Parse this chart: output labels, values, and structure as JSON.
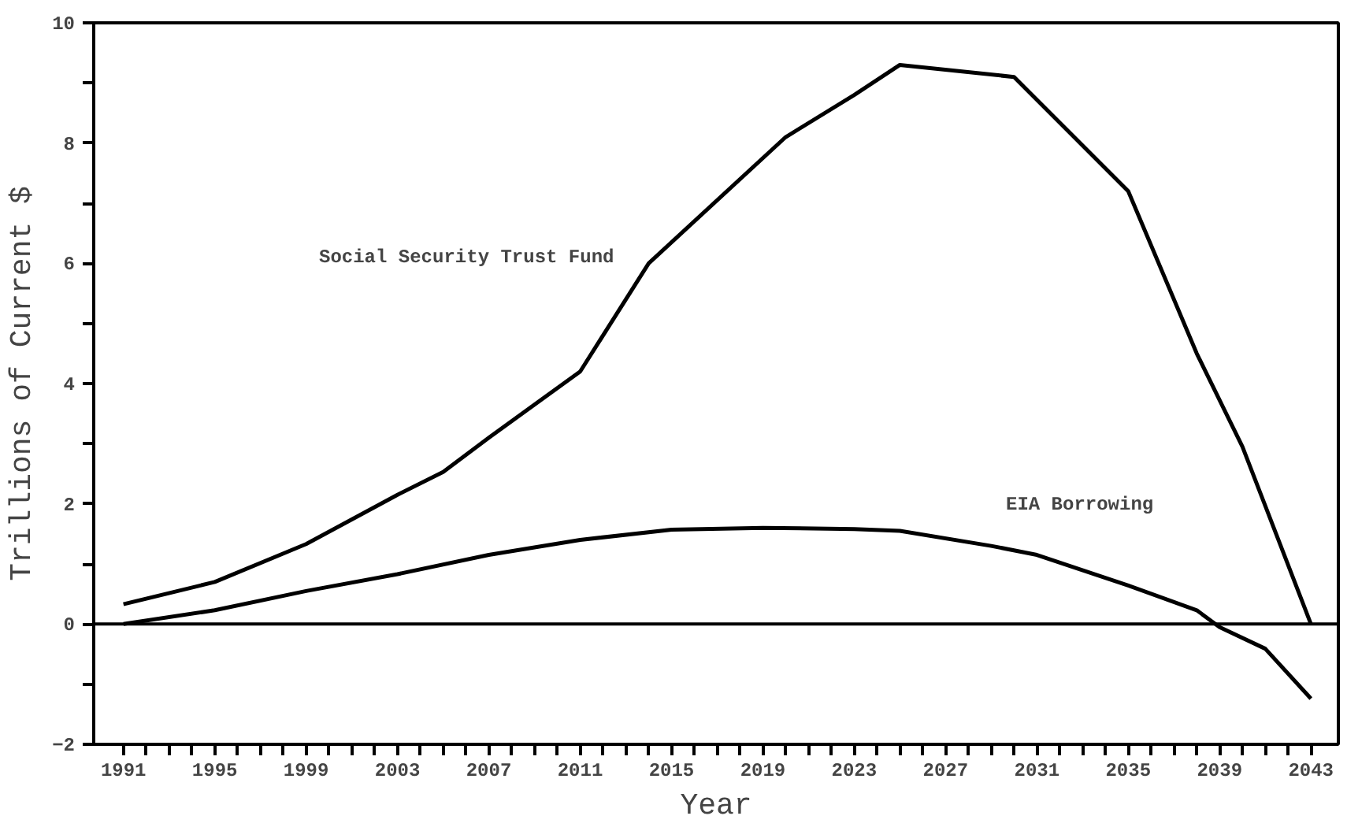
{
  "chart_data": {
    "type": "line",
    "xlabel": "Year",
    "ylabel": "Trillions of Current $",
    "xlim": [
      1989.7,
      2044.2
    ],
    "ylim": [
      -2,
      10
    ],
    "xticks": [
      1991,
      {
        "value": 1992,
        "label": null
      },
      {
        "value": 1993,
        "label": null
      },
      {
        "value": 1994,
        "label": null
      },
      1995,
      {
        "value": 1996,
        "label": null
      },
      {
        "value": 1997,
        "label": null
      },
      {
        "value": 1998,
        "label": null
      },
      1999,
      {
        "value": 2000,
        "label": null
      },
      {
        "value": 2001,
        "label": null
      },
      {
        "value": 2002,
        "label": null
      },
      2003,
      {
        "value": 2004,
        "label": null
      },
      {
        "value": 2005,
        "label": null
      },
      {
        "value": 2006,
        "label": null
      },
      2007,
      {
        "value": 2008,
        "label": null
      },
      {
        "value": 2009,
        "label": null
      },
      {
        "value": 2010,
        "label": null
      },
      2011,
      {
        "value": 2012,
        "label": null
      },
      {
        "value": 2013,
        "label": null
      },
      {
        "value": 2014,
        "label": null
      },
      2015,
      {
        "value": 2016,
        "label": null
      },
      {
        "value": 2017,
        "label": null
      },
      {
        "value": 2018,
        "label": null
      },
      2019,
      {
        "value": 2020,
        "label": null
      },
      {
        "value": 2021,
        "label": null
      },
      {
        "value": 2022,
        "label": null
      },
      2023,
      {
        "value": 2024,
        "label": null
      },
      {
        "value": 2025,
        "label": null
      },
      {
        "value": 2026,
        "label": null
      },
      2027,
      {
        "value": 2028,
        "label": null
      },
      {
        "value": 2029,
        "label": null
      },
      {
        "value": 2030,
        "label": null
      },
      2031,
      {
        "value": 2032,
        "label": null
      },
      {
        "value": 2033,
        "label": null
      },
      {
        "value": 2034,
        "label": null
      },
      2035,
      {
        "value": 2036,
        "label": null
      },
      {
        "value": 2037,
        "label": null
      },
      {
        "value": 2038,
        "label": null
      },
      2039,
      {
        "value": 2040,
        "label": null
      },
      {
        "value": 2041,
        "label": null
      },
      {
        "value": 2042,
        "label": null
      },
      2043
    ],
    "yticks": [
      -2,
      {
        "value": -1,
        "label": null
      },
      0,
      {
        "value": 1,
        "label": null
      },
      2,
      {
        "value": 3,
        "label": null
      },
      4,
      {
        "value": 5,
        "label": null
      },
      6,
      {
        "value": 7,
        "label": null
      },
      8,
      {
        "value": 9,
        "label": null
      },
      10
    ],
    "line_style": "solid",
    "ref_lines": [
      {
        "axis": "y",
        "value": 0,
        "color": "#000000"
      }
    ],
    "annotations": [
      "Social Security Trust Fund",
      "EIA Borrowing"
    ],
    "series": [
      {
        "color": "#000000",
        "x": [
          1991,
          1995,
          1999,
          2003,
          2005,
          2007,
          2011,
          2014,
          2020,
          2023,
          2025,
          2030,
          2035,
          2038,
          2040,
          2043
        ],
        "values": [
          0.33,
          0.7,
          1.33,
          2.15,
          2.53,
          3.1,
          4.2,
          6.0,
          8.1,
          8.8,
          9.3,
          9.1,
          7.2,
          4.5,
          2.95,
          0
        ]
      },
      {
        "color": "#000000",
        "x": [
          1991,
          1995,
          1999,
          2003,
          2007,
          2011,
          2015,
          2019,
          2023,
          2025,
          2029,
          2031,
          2035,
          2038,
          2039,
          2041,
          2043
        ],
        "values": [
          0,
          0.23,
          0.55,
          0.83,
          1.15,
          1.4,
          1.57,
          1.6,
          1.58,
          1.55,
          1.3,
          1.15,
          0.64,
          0.23,
          -0.05,
          -0.41,
          -1.24
        ]
      }
    ]
  }
}
